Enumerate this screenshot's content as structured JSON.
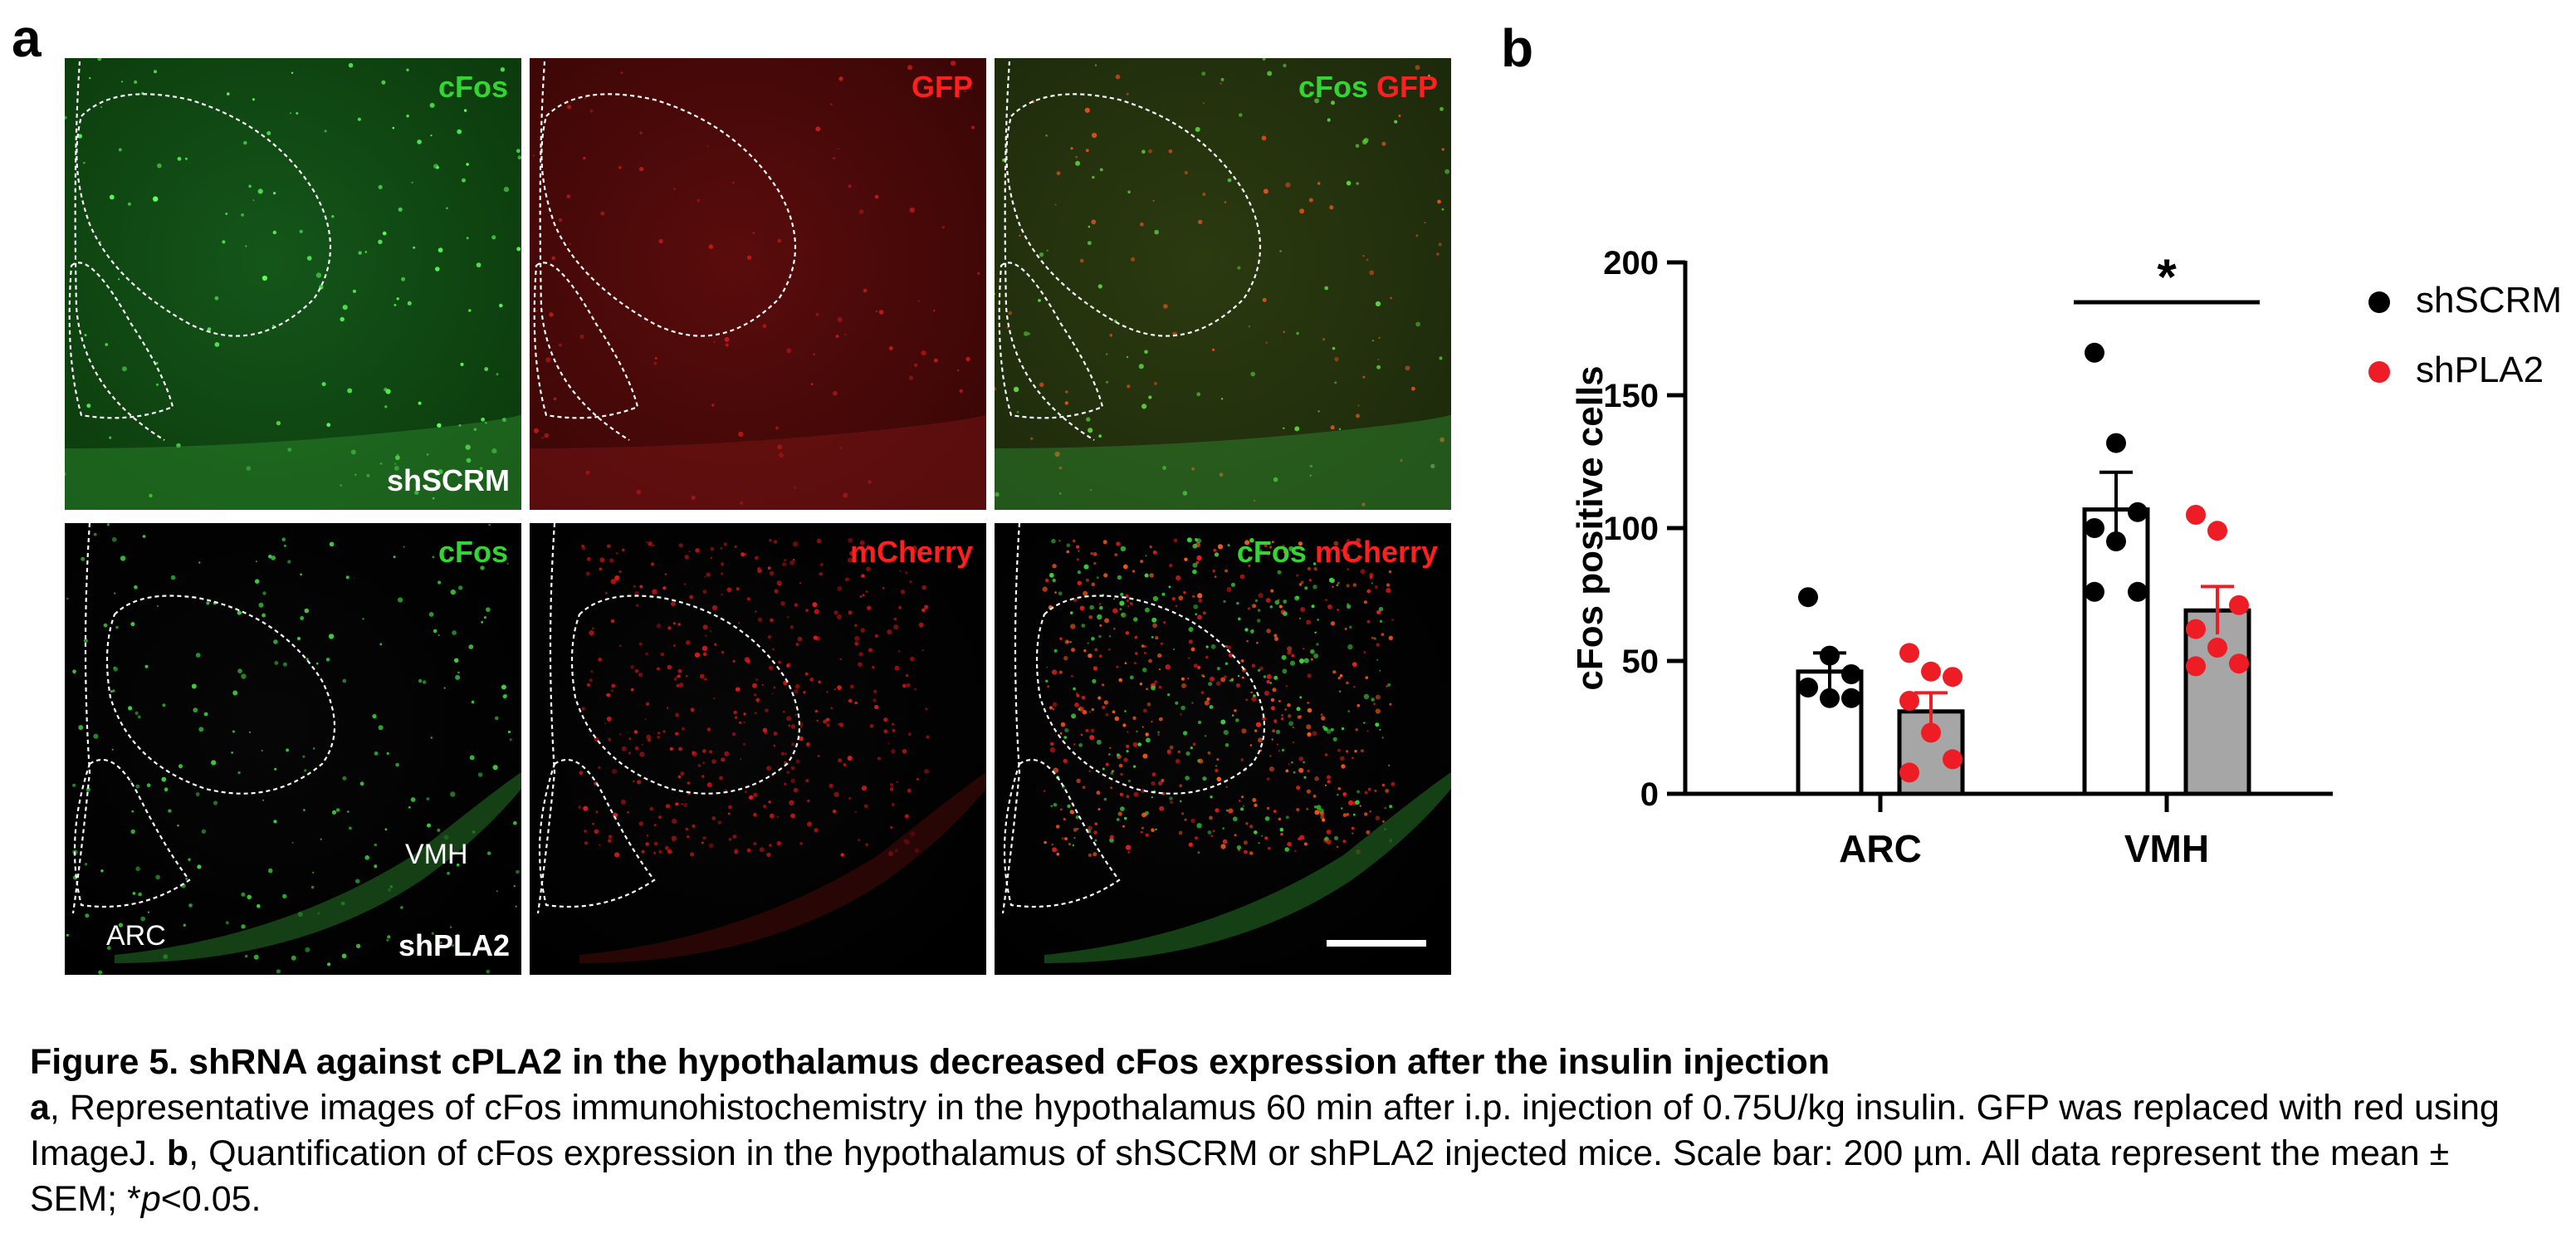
{
  "panel_a": {
    "letter": "a",
    "tiles": [
      {
        "labels": [
          {
            "text": "cFos",
            "color": "green"
          }
        ],
        "condition": "shSCRM",
        "tint": "green",
        "density": "sparse-green"
      },
      {
        "labels": [
          {
            "text": "GFP",
            "color": "red"
          }
        ],
        "condition": "",
        "tint": "red",
        "density": "uniform-red"
      },
      {
        "labels": [
          {
            "text": "cFos",
            "color": "green"
          },
          {
            "text": "GFP",
            "color": "red"
          }
        ],
        "condition": "",
        "tint": "merge",
        "density": "merge-sparse"
      },
      {
        "labels": [
          {
            "text": "cFos",
            "color": "green"
          }
        ],
        "condition": "shPLA2",
        "tint": "black",
        "density": "sparse-green-dots",
        "regions": [
          "VMH",
          "ARC"
        ]
      },
      {
        "labels": [
          {
            "text": "mCherry",
            "color": "red"
          }
        ],
        "condition": "",
        "tint": "black",
        "density": "red-dots"
      },
      {
        "labels": [
          {
            "text": "cFos",
            "color": "green"
          },
          {
            "text": "mCherry",
            "color": "red"
          }
        ],
        "condition": "",
        "tint": "black",
        "density": "merge-dense",
        "scalebar": true
      }
    ],
    "row_conditions": [
      "shSCRM",
      "shPLA2"
    ],
    "region_labels": {
      "vmh": "VMH",
      "arc": "ARC"
    }
  },
  "panel_b": {
    "letter": "b"
  },
  "chart_data": {
    "type": "bar",
    "categories": [
      "ARC",
      "VMH"
    ],
    "ylabel": "cFos positive cells",
    "xlabel": "",
    "ylim": [
      0,
      200
    ],
    "yticks": [
      0,
      50,
      100,
      150,
      200
    ],
    "legend_position": "right",
    "series": [
      {
        "name": "shSCRM",
        "color": "#000000",
        "bar_fill": "#ffffff",
        "values": [
          46,
          107
        ],
        "sem": [
          7,
          14
        ],
        "points": [
          [
            74,
            52,
            45,
            40,
            36,
            36
          ],
          [
            166,
            132,
            106,
            100,
            95,
            76,
            76
          ]
        ]
      },
      {
        "name": "shPLA2",
        "color": "#ee1c24",
        "bar_fill": "#a6a6a6",
        "values": [
          31,
          69
        ],
        "sem": [
          7,
          9
        ],
        "points": [
          [
            53,
            46,
            44,
            35,
            23,
            13,
            8
          ],
          [
            105,
            99,
            71,
            62,
            55,
            49,
            48
          ]
        ]
      }
    ],
    "annotations": [
      {
        "text": "*",
        "category": "VMH",
        "type": "significance"
      }
    ]
  },
  "caption": {
    "title": "Figure 5. shRNA against cPLA2 in the hypothalamus decreased cFos expression after the insulin injection",
    "a_letter": "a",
    "a_text": ", Representative images of cFos immunohistochemistry in the hypothalamus 60 min after i.p. injection of 0.75U/kg insulin. GFP was replaced with red using ImageJ. ",
    "b_letter": "b",
    "b_text": ", Quantification of cFos expression in the hypothalamus of shSCRM or shPLA2 injected mice. Scale bar: 200 µm. All data represent the mean ± SEM; *",
    "p_letter": "p",
    "p_text": "<0.05."
  }
}
